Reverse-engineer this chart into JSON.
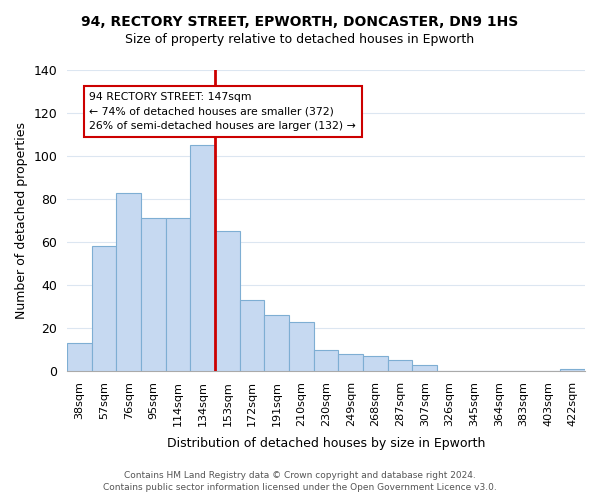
{
  "title": "94, RECTORY STREET, EPWORTH, DONCASTER, DN9 1HS",
  "subtitle": "Size of property relative to detached houses in Epworth",
  "xlabel": "Distribution of detached houses by size in Epworth",
  "ylabel": "Number of detached properties",
  "bar_labels": [
    "38sqm",
    "57sqm",
    "76sqm",
    "95sqm",
    "114sqm",
    "134sqm",
    "153sqm",
    "172sqm",
    "191sqm",
    "210sqm",
    "230sqm",
    "249sqm",
    "268sqm",
    "287sqm",
    "307sqm",
    "326sqm",
    "345sqm",
    "364sqm",
    "383sqm",
    "403sqm",
    "422sqm"
  ],
  "bar_heights": [
    13,
    58,
    83,
    71,
    71,
    105,
    65,
    33,
    26,
    23,
    10,
    8,
    7,
    5,
    3,
    0,
    0,
    0,
    0,
    0,
    1
  ],
  "bar_color": "#c6d9f1",
  "bar_edge_color": "#7eaed3",
  "vline_color": "#cc0000",
  "ylim": [
    0,
    140
  ],
  "yticks": [
    0,
    20,
    40,
    60,
    80,
    100,
    120,
    140
  ],
  "annotation_title": "94 RECTORY STREET: 147sqm",
  "annotation_line1": "← 74% of detached houses are smaller (372)",
  "annotation_line2": "26% of semi-detached houses are larger (132) →",
  "annotation_box_color": "#ffffff",
  "annotation_box_edge": "#cc0000",
  "footer_line1": "Contains HM Land Registry data © Crown copyright and database right 2024.",
  "footer_line2": "Contains public sector information licensed under the Open Government Licence v3.0.",
  "background_color": "#ffffff",
  "grid_color": "#dce6f1"
}
